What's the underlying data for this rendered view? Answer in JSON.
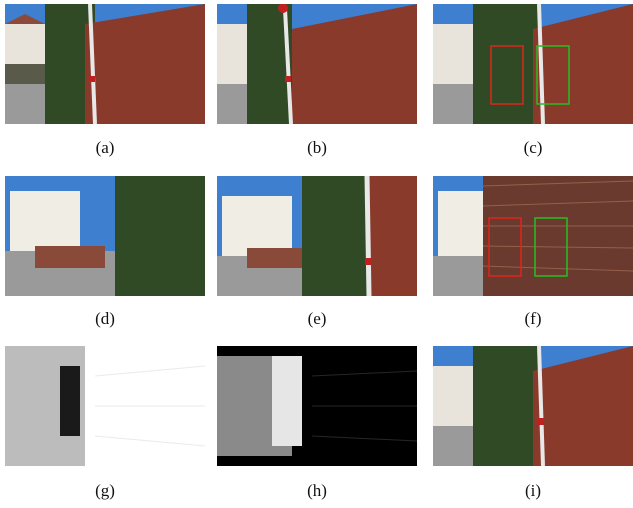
{
  "figure": {
    "panels": [
      {
        "id": "a",
        "label": "(a)"
      },
      {
        "id": "b",
        "label": "(b)"
      },
      {
        "id": "c",
        "label": "(c)"
      },
      {
        "id": "d",
        "label": "(d)"
      },
      {
        "id": "e",
        "label": "(e)"
      },
      {
        "id": "f",
        "label": "(f)"
      },
      {
        "id": "g",
        "label": "(g)"
      },
      {
        "id": "h",
        "label": "(h)"
      },
      {
        "id": "i",
        "label": "(i)"
      }
    ],
    "colors": {
      "sky": "#3f7fd0",
      "brick": "#8a3a2a",
      "ivy": "#2f4a25",
      "road": "#9a9a9a",
      "box_red": "#e0241c",
      "box_green": "#22c022"
    }
  }
}
